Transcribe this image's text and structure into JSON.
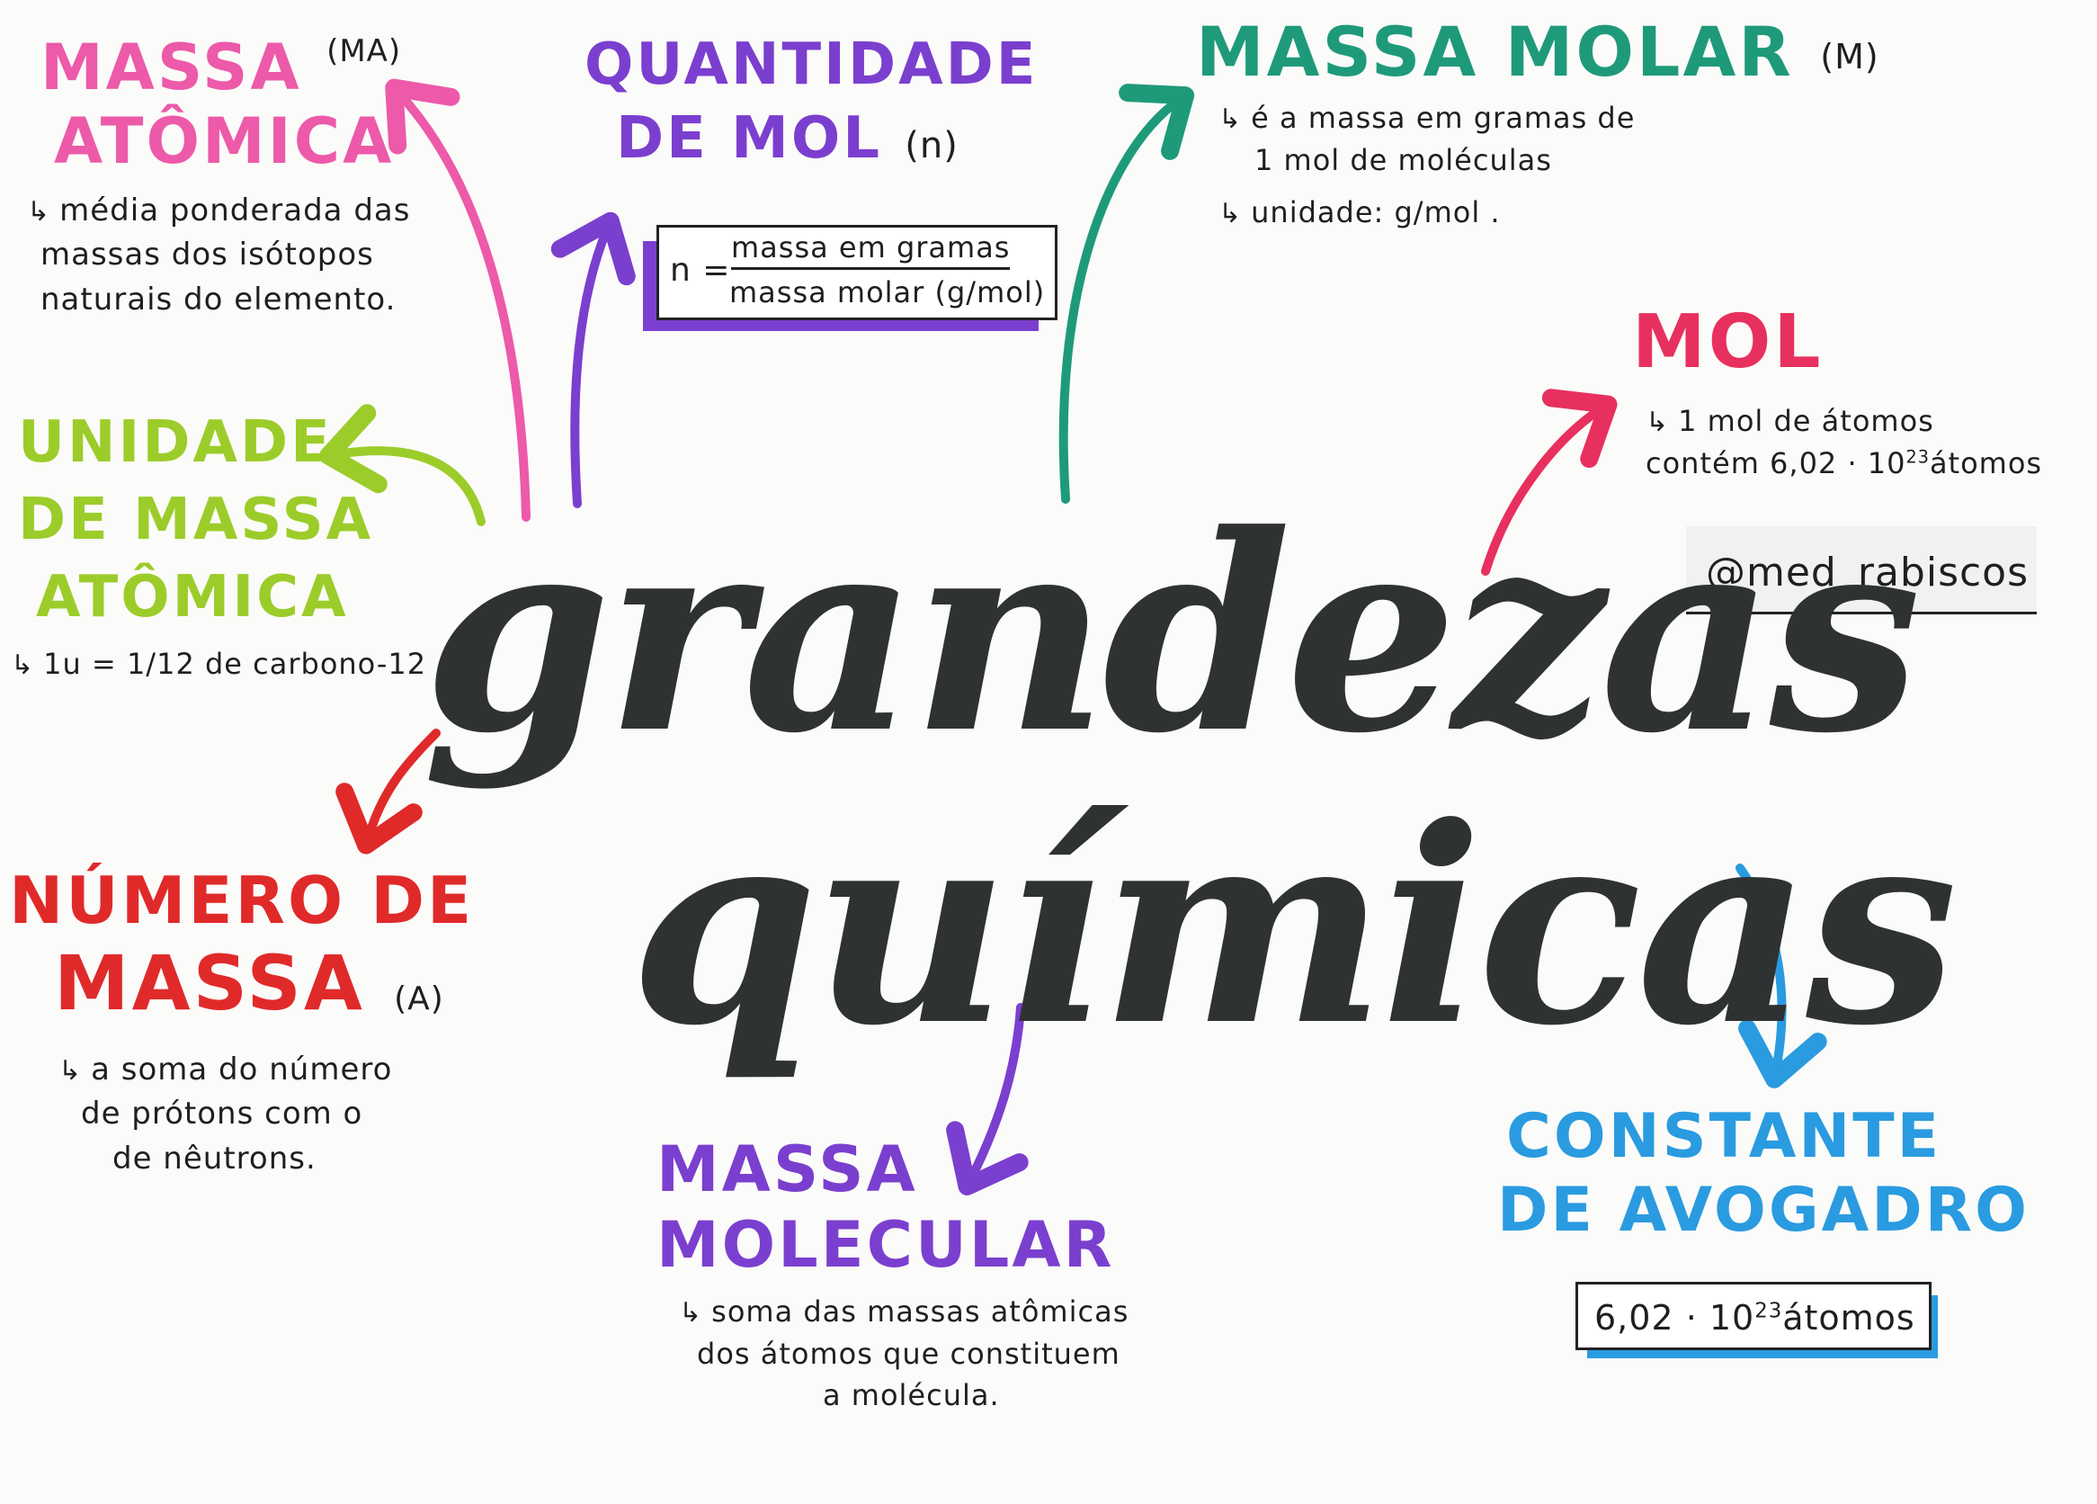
{
  "colors": {
    "pink": "#ec5aa9",
    "purple": "#7b3fcf",
    "teal": "#1e9a7a",
    "crimson": "#e8305f",
    "lime": "#9ccc2a",
    "red": "#e02a2a",
    "blue": "#2a9be0",
    "title": "#2f3232"
  },
  "title": {
    "line1": "grandezas",
    "line2": "químicas"
  },
  "massa_atomica": {
    "heading1": "MASSA",
    "symbol": "(MA)",
    "heading2": "ATÔMICA",
    "desc1": "média ponderada das",
    "desc2": "massas dos isótopos",
    "desc3": "naturais do elemento."
  },
  "quantidade_mol": {
    "heading1": "QUANTIDADE",
    "heading2": "DE MOL",
    "symbol": "(n)",
    "formula_lhs": "n =",
    "formula_num": "massa em gramas",
    "formula_den": "massa molar (g/mol)"
  },
  "massa_molar": {
    "heading": "MASSA MOLAR",
    "symbol": "(M)",
    "desc1": "é a massa em gramas de",
    "desc2": "1 mol de moléculas",
    "desc3": "unidade: g/mol ."
  },
  "mol": {
    "heading": "MOL",
    "desc1": "1 mol de átomos",
    "desc2_a": "contém 6,02 · 10",
    "desc2_exp": "23",
    "desc2_b": "átomos"
  },
  "handle": "@med_rabiscos",
  "unidade_massa_atomica": {
    "heading1": "UNIDADE",
    "heading2": "DE MASSA",
    "heading3": "ATÔMICA",
    "desc": "1u = 1/12 de carbono-12"
  },
  "numero_massa": {
    "heading1": "NÚMERO DE",
    "heading2": "MASSA",
    "symbol": "(A)",
    "desc1": "a soma do número",
    "desc2": "de prótons com o",
    "desc3": "de nêutrons."
  },
  "massa_molecular": {
    "heading1": "MASSA",
    "heading2": "MOLECULAR",
    "desc1": "soma das massas atômicas",
    "desc2": "dos átomos que constituem",
    "desc3": "a molécula."
  },
  "constante_avogadro": {
    "heading1": "CONSTANTE",
    "heading2": "DE AVOGADRO",
    "value_a": "6,02 · 10",
    "value_exp": "23",
    "value_b": "átomos"
  }
}
